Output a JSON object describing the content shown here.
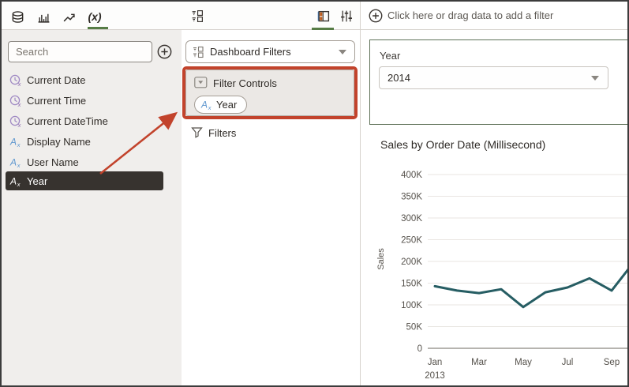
{
  "left_panel": {
    "tabs": [
      {
        "icon": "database-icon"
      },
      {
        "icon": "bar-chart-icon"
      },
      {
        "icon": "trend-icon"
      },
      {
        "icon": "fx-icon",
        "label": "(x)",
        "active": true
      }
    ],
    "search_placeholder": "Search",
    "fields": [
      {
        "label": "Current Date",
        "icon": "clock-icon"
      },
      {
        "label": "Current Time",
        "icon": "clock-icon"
      },
      {
        "label": "Current DateTime",
        "icon": "clock-icon"
      },
      {
        "label": "Display Name",
        "icon": "ax-icon"
      },
      {
        "label": "User Name",
        "icon": "ax-icon"
      },
      {
        "label": "Year",
        "icon": "ax-icon",
        "selected": true
      }
    ]
  },
  "middle_panel": {
    "dashboard_filters_label": "Dashboard Filters",
    "filter_controls_label": "Filter Controls",
    "year_chip_label": "Year",
    "filters_label": "Filters"
  },
  "right_panel": {
    "add_filter_text": "Click here or drag data to add a filter",
    "filter_control": {
      "label": "Year",
      "value": "2014"
    }
  },
  "chart_data": {
    "type": "line",
    "title": "Sales by Order Date (Millisecond)",
    "ylabel": "Sales",
    "x": [
      "Jan 2013",
      "Feb 2013",
      "Mar 2013",
      "Apr 2013",
      "May 2013",
      "Jun 2013",
      "Jul 2013",
      "Aug 2013",
      "Sep 2013",
      "Oct 2013"
    ],
    "values": [
      143000,
      133000,
      127000,
      136000,
      95000,
      129000,
      140000,
      161000,
      133000,
      198000
    ],
    "y_ticks": [
      "0",
      "50K",
      "100K",
      "150K",
      "200K",
      "250K",
      "300K",
      "350K",
      "400K"
    ],
    "x_tick_labels": [
      "Jan",
      "Mar",
      "May",
      "Jul",
      "Sep"
    ],
    "x_tick_sublabel": "2013",
    "ylim": [
      0,
      400000
    ],
    "grid": true,
    "legend": "none",
    "line_color": "#265d63",
    "clipped_right": true
  },
  "icons": {
    "ax_main": "A",
    "ax_sub": "x",
    "clock_sub": "x"
  },
  "colors": {
    "accent_green": "#567c45",
    "annotation_red": "#c2432c",
    "selected_row_bg": "#37332f",
    "clock_purple": "#a08ac4",
    "ax_blue": "#5f97cf",
    "filter_box_border": "#5e7157"
  }
}
